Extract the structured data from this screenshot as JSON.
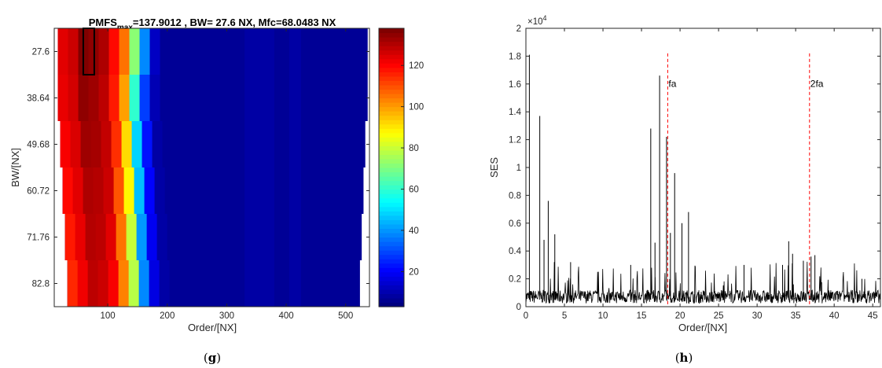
{
  "chart_data": [
    {
      "type": "heatmap",
      "panel_label": "(g)",
      "title_prefix": "PMFS",
      "title_sub": "max",
      "title_suffix": "=137.9012 , BW= 27.6 NX, Mfc=68.0483 NX",
      "xlabel": "Order/[NX]",
      "ylabel": "BW/[NX]",
      "xlim": [
        10,
        540
      ],
      "x_ticks": [
        100,
        200,
        300,
        400,
        500
      ],
      "y_labels": [
        "27.6",
        "38.64",
        "49.68",
        "60.72",
        "71.76",
        "82.8"
      ],
      "colorbar_ticks": [
        20,
        40,
        60,
        80,
        100,
        120
      ],
      "colorbar_range": [
        3,
        138
      ],
      "colormap": "jet",
      "rows": [
        {
          "bw": 27.6,
          "x_start": 16,
          "x_end": 537,
          "values": [
            125,
            128,
            138,
            136,
            132,
            120,
            106,
            72,
            38,
            12,
            6,
            6
          ]
        },
        {
          "bw": 38.64,
          "x_start": 16,
          "x_end": 537,
          "values": [
            124,
            127,
            136,
            134,
            130,
            118,
            100,
            60,
            28,
            10,
            6,
            6
          ]
        },
        {
          "bw": 49.68,
          "x_start": 20,
          "x_end": 533,
          "values": [
            122,
            126,
            134,
            133,
            129,
            115,
            92,
            48,
            22,
            8,
            6,
            6
          ]
        },
        {
          "bw": 60.72,
          "x_start": 24,
          "x_end": 530,
          "values": [
            120,
            125,
            132,
            131,
            128,
            110,
            88,
            45,
            20,
            8,
            6,
            6
          ]
        },
        {
          "bw": 71.76,
          "x_start": 28,
          "x_end": 527,
          "values": [
            118,
            124,
            131,
            130,
            125,
            106,
            80,
            40,
            18,
            8,
            6,
            6
          ]
        },
        {
          "bw": 82.8,
          "x_start": 32,
          "x_end": 524,
          "values": [
            116,
            123,
            130,
            128,
            122,
            104,
            78,
            38,
            16,
            8,
            6,
            6
          ]
        }
      ],
      "highlight": {
        "x": 68.0483,
        "bw": 27.6
      }
    },
    {
      "type": "line",
      "panel_label": "(h)",
      "xlabel": "Order/[NX]",
      "ylabel": "SES",
      "y_exponent": "×10",
      "y_exponent_power": "4",
      "xlim": [
        0,
        46
      ],
      "ylim": [
        0,
        2
      ],
      "x_ticks": [
        0,
        5,
        10,
        15,
        20,
        25,
        30,
        35,
        40,
        45
      ],
      "y_ticks": [
        0,
        0.2,
        0.4,
        0.6,
        0.8,
        1,
        1.2,
        1.4,
        1.6,
        1.8,
        2
      ],
      "y_tick_labels": [
        "0",
        "0.2",
        "0.4",
        "0.6",
        "0.8",
        "1",
        "1.2",
        "1.4",
        "1.6",
        "1.8",
        "2"
      ],
      "peaks": [
        {
          "x": 0.45,
          "y": 1.81
        },
        {
          "x": 1.8,
          "y": 1.37
        },
        {
          "x": 2.9,
          "y": 0.76
        },
        {
          "x": 2.35,
          "y": 0.48
        },
        {
          "x": 3.75,
          "y": 0.52
        },
        {
          "x": 5.8,
          "y": 0.32
        },
        {
          "x": 13.6,
          "y": 0.3
        },
        {
          "x": 16.2,
          "y": 1.28
        },
        {
          "x": 16.75,
          "y": 0.46
        },
        {
          "x": 17.35,
          "y": 1.66
        },
        {
          "x": 18.25,
          "y": 1.22
        },
        {
          "x": 18.75,
          "y": 0.53
        },
        {
          "x": 19.3,
          "y": 0.96
        },
        {
          "x": 20.25,
          "y": 0.6
        },
        {
          "x": 21.1,
          "y": 0.68
        },
        {
          "x": 28.3,
          "y": 0.3
        },
        {
          "x": 33.3,
          "y": 0.3
        },
        {
          "x": 34.1,
          "y": 0.47
        },
        {
          "x": 34.6,
          "y": 0.38
        },
        {
          "x": 36.0,
          "y": 0.33
        },
        {
          "x": 37.0,
          "y": 0.36
        },
        {
          "x": 37.5,
          "y": 0.37
        },
        {
          "x": 43.6,
          "y": 0.2
        }
      ],
      "noise_level": 0.08,
      "markers": [
        {
          "label": "fa",
          "x": 18.4
        },
        {
          "label": "2fa",
          "x": 36.8
        }
      ],
      "marker_top": 1.82,
      "colors": {
        "line": "#000000",
        "marker": "#ff0000"
      }
    }
  ]
}
